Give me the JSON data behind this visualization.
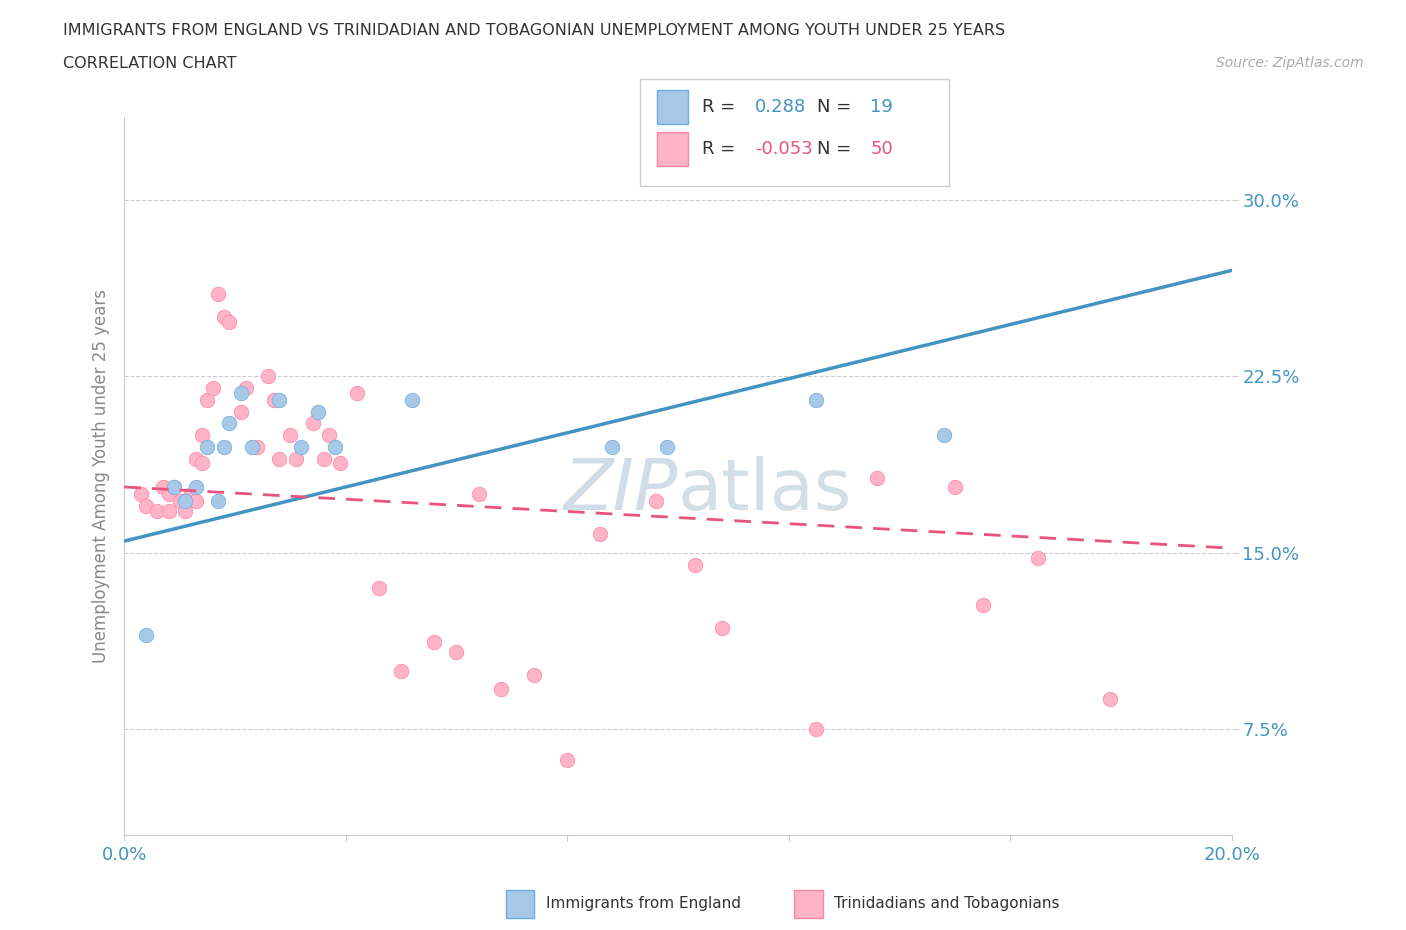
{
  "title_line1": "IMMIGRANTS FROM ENGLAND VS TRINIDADIAN AND TOBAGONIAN UNEMPLOYMENT AMONG YOUTH UNDER 25 YEARS",
  "title_line2": "CORRELATION CHART",
  "source_text": "Source: ZipAtlas.com",
  "ylabel": "Unemployment Among Youth under 25 years",
  "xlim": [
    0.0,
    0.2
  ],
  "ylim": [
    0.03,
    0.335
  ],
  "yticks": [
    0.075,
    0.15,
    0.225,
    0.3
  ],
  "ytick_labels": [
    "7.5%",
    "15.0%",
    "22.5%",
    "30.0%"
  ],
  "xtick_positions": [
    0.0,
    0.04,
    0.08,
    0.12,
    0.16,
    0.2
  ],
  "xtick_labels": [
    "0.0%",
    "",
    "",
    "",
    "",
    "20.0%"
  ],
  "england_R": 0.288,
  "england_N": 19,
  "trinidad_R": -0.053,
  "trinidad_N": 50,
  "england_scatter_color": "#a8c8e8",
  "england_edge_color": "#6aade0",
  "trinidad_scatter_color": "#ffb3c6",
  "trinidad_edge_color": "#ff85a1",
  "trend_england_color": "#4393c3",
  "trend_trinidad_color": "#e8547a",
  "legend_box_color": "#cccccc",
  "title_color": "#333333",
  "axis_label_color": "#888888",
  "tick_color": "#4393c3",
  "watermark_color": "#d0dde8",
  "england_x": [
    0.004,
    0.009,
    0.011,
    0.013,
    0.015,
    0.017,
    0.018,
    0.019,
    0.021,
    0.023,
    0.028,
    0.032,
    0.035,
    0.038,
    0.052,
    0.088,
    0.098,
    0.125,
    0.148
  ],
  "england_y": [
    0.115,
    0.178,
    0.172,
    0.178,
    0.195,
    0.172,
    0.195,
    0.205,
    0.218,
    0.195,
    0.215,
    0.195,
    0.21,
    0.195,
    0.215,
    0.195,
    0.195,
    0.215,
    0.2
  ],
  "trinidad_x": [
    0.003,
    0.004,
    0.006,
    0.007,
    0.008,
    0.008,
    0.009,
    0.01,
    0.011,
    0.012,
    0.013,
    0.013,
    0.014,
    0.014,
    0.015,
    0.016,
    0.017,
    0.018,
    0.019,
    0.021,
    0.022,
    0.024,
    0.026,
    0.027,
    0.028,
    0.03,
    0.031,
    0.034,
    0.036,
    0.037,
    0.039,
    0.042,
    0.046,
    0.05,
    0.056,
    0.06,
    0.064,
    0.068,
    0.074,
    0.08,
    0.086,
    0.096,
    0.103,
    0.108,
    0.125,
    0.136,
    0.15,
    0.155,
    0.165,
    0.178
  ],
  "trinidad_y": [
    0.175,
    0.17,
    0.168,
    0.178,
    0.175,
    0.168,
    0.178,
    0.172,
    0.168,
    0.175,
    0.172,
    0.19,
    0.188,
    0.2,
    0.215,
    0.22,
    0.26,
    0.25,
    0.248,
    0.21,
    0.22,
    0.195,
    0.225,
    0.215,
    0.19,
    0.2,
    0.19,
    0.205,
    0.19,
    0.2,
    0.188,
    0.218,
    0.135,
    0.1,
    0.112,
    0.108,
    0.175,
    0.092,
    0.098,
    0.062,
    0.158,
    0.172,
    0.145,
    0.118,
    0.075,
    0.182,
    0.178,
    0.128,
    0.148,
    0.088
  ],
  "trend_eng_x0": 0.0,
  "trend_eng_y0": 0.155,
  "trend_eng_x1": 0.2,
  "trend_eng_y1": 0.27,
  "trend_tri_x0": 0.0,
  "trend_tri_y0": 0.178,
  "trend_tri_x1": 0.2,
  "trend_tri_y1": 0.152
}
